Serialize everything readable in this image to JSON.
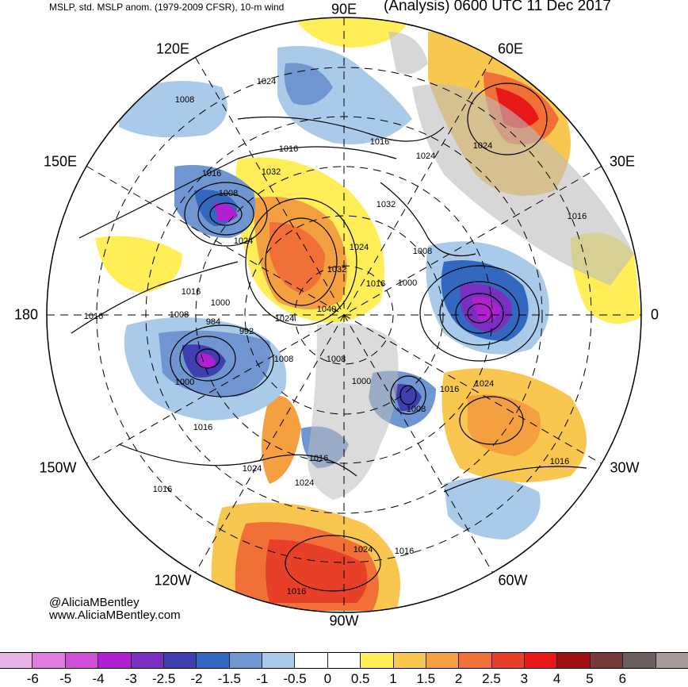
{
  "header": {
    "left_title": "MSLP, std. MSLP anom. (1979-2009 CFSR), 10-m wind",
    "right_title": "(Analysis) 0600 UTC 11 Dec 2017"
  },
  "longitude_labels": {
    "top": "90E",
    "top_right": "60E",
    "right_upper": "30E",
    "right": "0",
    "right_lower": "30W",
    "bottom_right": "60W",
    "bottom": "90W",
    "bottom_left": "120W",
    "left_lower": "150W",
    "left": "180",
    "left_upper": "150E",
    "top_left": "120E"
  },
  "credits": {
    "handle": "@AliciaMBentley",
    "website": "www.AliciaMBentley.com"
  },
  "isobar_labels": [
    "1016",
    "1008",
    "1024",
    "1016",
    "1024",
    "1016",
    "1024",
    "1032",
    "1016",
    "1008",
    "1032",
    "1024",
    "1024",
    "1032",
    "1016",
    "1008",
    "1000",
    "1016",
    "1000",
    "1016",
    "1040",
    "1024",
    "1008",
    "984",
    "992",
    "1008",
    "1008",
    "1000",
    "1016",
    "1024",
    "1008",
    "1000",
    "1016",
    "1016",
    "1024",
    "1024",
    "1016",
    "1016",
    "1024",
    "1016",
    "1016"
  ],
  "colorbar": {
    "colors": [
      "#e8b4e8",
      "#e07ce0",
      "#d04fd8",
      "#b020d0",
      "#7a2fc0",
      "#3f3fb0",
      "#3368c0",
      "#6f96d0",
      "#a9cae8",
      "#ffffff",
      "#ffffff",
      "#ffee58",
      "#f9c74f",
      "#f4a040",
      "#f07038",
      "#e84028",
      "#e81818",
      "#a01010",
      "#7a3a3a",
      "#6b5f5f",
      "#a89a9a"
    ],
    "ticks": [
      "-6",
      "-5",
      "-4",
      "-3",
      "-2.5",
      "-2",
      "-1.5",
      "-1",
      "-0.5",
      "0",
      "0.5",
      "1",
      "1.5",
      "2",
      "2.5",
      "3",
      "4",
      "5",
      "6"
    ]
  }
}
